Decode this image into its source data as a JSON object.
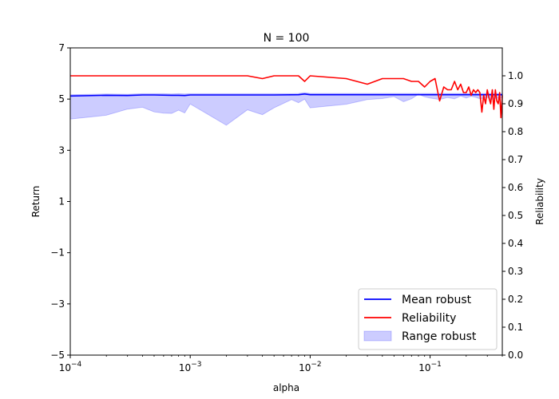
{
  "chart_data": {
    "type": "line",
    "title": "N = 100",
    "xlabel": "alpha",
    "ylabel_left": "Return",
    "ylabel_right": "Reliability",
    "x_scale": "log",
    "xlim": [
      0.0001,
      0.4
    ],
    "x_ticks": [
      {
        "value": 0.0001,
        "base": "10",
        "exp": "−4"
      },
      {
        "value": 0.001,
        "base": "10",
        "exp": "−3"
      },
      {
        "value": 0.01,
        "base": "10",
        "exp": "−2"
      },
      {
        "value": 0.1,
        "base": "10",
        "exp": "−1"
      }
    ],
    "ylim_left": [
      -5,
      7
    ],
    "y_ticks_left": [
      {
        "value": -5,
        "label": "−5"
      },
      {
        "value": -3,
        "label": "−3"
      },
      {
        "value": -1,
        "label": "−1"
      },
      {
        "value": 1,
        "label": "1"
      },
      {
        "value": 3,
        "label": "3"
      },
      {
        "value": 5,
        "label": "5"
      },
      {
        "value": 7,
        "label": "7"
      }
    ],
    "ylim_right": [
      0.0,
      1.1
    ],
    "y_ticks_right": [
      {
        "value": 0.0,
        "label": "0.0"
      },
      {
        "value": 0.1,
        "label": "0.1"
      },
      {
        "value": 0.2,
        "label": "0.2"
      },
      {
        "value": 0.3,
        "label": "0.3"
      },
      {
        "value": 0.4,
        "label": "0.4"
      },
      {
        "value": 0.5,
        "label": "0.5"
      },
      {
        "value": 0.6,
        "label": "0.6"
      },
      {
        "value": 0.7,
        "label": "0.7"
      },
      {
        "value": 0.8,
        "label": "0.8"
      },
      {
        "value": 0.9,
        "label": "0.9"
      },
      {
        "value": 1.0,
        "label": "1.0"
      }
    ],
    "grid": false,
    "legend_position": "bottom-right",
    "series": [
      {
        "name": "Mean robust",
        "kind": "line",
        "axis": "left",
        "color": "#0000ff",
        "x": [
          0.0001,
          0.0002,
          0.0003,
          0.0004,
          0.0005,
          0.0007,
          0.0008,
          0.0009,
          0.001,
          0.002,
          0.003,
          0.005,
          0.008,
          0.009,
          0.01,
          0.02,
          0.03,
          0.05,
          0.08,
          0.1,
          0.15,
          0.2,
          0.3,
          0.4
        ],
        "y": [
          5.12,
          5.15,
          5.14,
          5.16,
          5.16,
          5.15,
          5.15,
          5.14,
          5.16,
          5.16,
          5.16,
          5.16,
          5.17,
          5.2,
          5.17,
          5.17,
          5.17,
          5.17,
          5.17,
          5.17,
          5.17,
          5.17,
          5.17,
          5.17
        ]
      },
      {
        "name": "Reliability",
        "kind": "line",
        "axis": "right",
        "color": "#ff0000",
        "x": [
          0.0001,
          0.0002,
          0.0005,
          0.001,
          0.002,
          0.003,
          0.004,
          0.005,
          0.006,
          0.007,
          0.008,
          0.009,
          0.01,
          0.02,
          0.03,
          0.04,
          0.05,
          0.06,
          0.07,
          0.08,
          0.09,
          0.1,
          0.11,
          0.12,
          0.13,
          0.14,
          0.15,
          0.16,
          0.17,
          0.18,
          0.19,
          0.2,
          0.21,
          0.22,
          0.23,
          0.24,
          0.25,
          0.26,
          0.27,
          0.28,
          0.29,
          0.3,
          0.31,
          0.32,
          0.33,
          0.34,
          0.35,
          0.36,
          0.37,
          0.38,
          0.39,
          0.4
        ],
        "y": [
          1.0,
          1.0,
          1.0,
          1.0,
          1.0,
          1.0,
          0.99,
          1.0,
          1.0,
          1.0,
          1.0,
          0.98,
          1.0,
          0.99,
          0.97,
          0.99,
          0.99,
          0.99,
          0.98,
          0.98,
          0.96,
          0.98,
          0.99,
          0.91,
          0.96,
          0.95,
          0.95,
          0.98,
          0.95,
          0.97,
          0.94,
          0.94,
          0.96,
          0.93,
          0.95,
          0.94,
          0.95,
          0.94,
          0.87,
          0.93,
          0.9,
          0.95,
          0.92,
          0.9,
          0.95,
          0.88,
          0.95,
          0.91,
          0.9,
          0.94,
          0.85,
          0.93
        ]
      },
      {
        "name": "Range robust",
        "kind": "band",
        "axis": "left",
        "color": "#0000ff",
        "opacity": 0.2,
        "x": [
          0.0001,
          0.0002,
          0.0003,
          0.0004,
          0.0005,
          0.0006,
          0.0007,
          0.0008,
          0.0009,
          0.001,
          0.002,
          0.003,
          0.004,
          0.005,
          0.007,
          0.008,
          0.009,
          0.01,
          0.02,
          0.03,
          0.04,
          0.05,
          0.06,
          0.07,
          0.08,
          0.09,
          0.1,
          0.12,
          0.14,
          0.16,
          0.18,
          0.2,
          0.22,
          0.24,
          0.26,
          0.28,
          0.3,
          0.32,
          0.35,
          0.4
        ],
        "low": [
          4.22,
          4.37,
          4.61,
          4.68,
          4.5,
          4.45,
          4.44,
          4.57,
          4.46,
          4.81,
          3.98,
          4.58,
          4.39,
          4.66,
          4.98,
          4.86,
          5.0,
          4.66,
          4.8,
          4.98,
          5.02,
          5.1,
          4.9,
          5.01,
          5.19,
          5.09,
          5.04,
          4.98,
          5.06,
          5.01,
          5.12,
          5.04,
          5.11,
          5.07,
          5.01,
          5.04,
          5.08,
          4.98,
          5.03,
          5.06
        ],
        "high": [
          5.17,
          5.2,
          5.19,
          5.21,
          5.21,
          5.21,
          5.2,
          5.21,
          5.2,
          5.21,
          5.21,
          5.21,
          5.21,
          5.21,
          5.21,
          5.22,
          5.25,
          5.22,
          5.22,
          5.22,
          5.22,
          5.22,
          5.22,
          5.22,
          5.22,
          5.22,
          5.22,
          5.22,
          5.22,
          5.22,
          5.22,
          5.22,
          5.22,
          5.22,
          5.22,
          5.22,
          5.22,
          5.22,
          5.22,
          5.22
        ]
      }
    ]
  }
}
